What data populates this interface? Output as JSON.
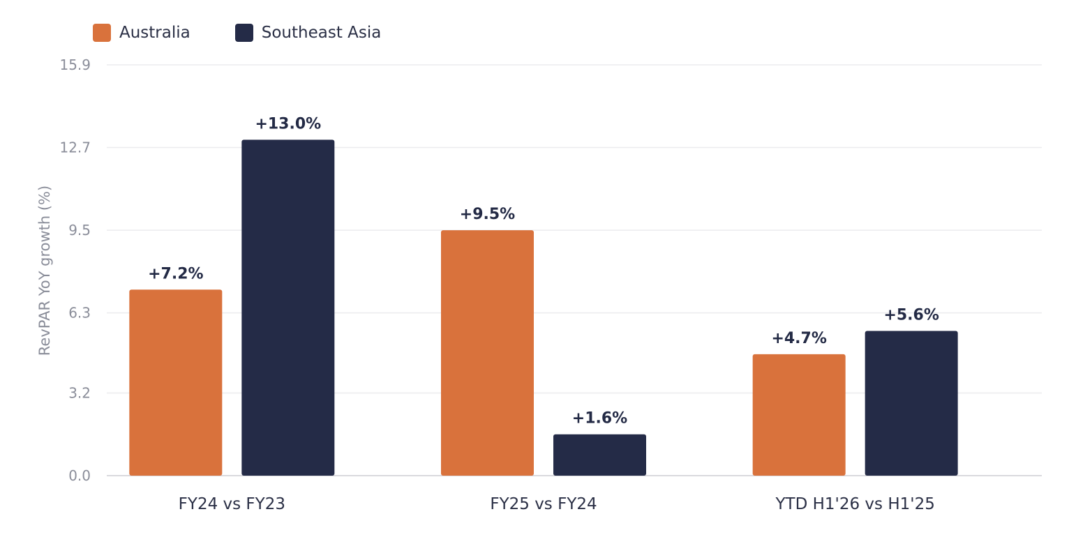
{
  "chart_data": {
    "type": "bar",
    "categories": [
      "FY24 vs FY23",
      "FY25 vs FY24",
      "YTD H1'26 vs H1'25"
    ],
    "series": [
      {
        "name": "Australia",
        "color": "#D9723C",
        "values": [
          7.2,
          9.5,
          4.7
        ],
        "labels": [
          "+7.2%",
          "+9.5%",
          "+4.7%"
        ]
      },
      {
        "name": "Southeast Asia",
        "color": "#242B47",
        "values": [
          13.0,
          1.6,
          5.6
        ],
        "labels": [
          "+13.0%",
          "+1.6%",
          "+5.6%"
        ]
      }
    ],
    "ylabel": "RevPAR YoY growth (%)",
    "xlabel": "",
    "ylim": [
      0,
      15.9
    ],
    "yticks": [
      "0.0",
      "3.2",
      "6.3",
      "9.5",
      "12.7",
      "15.9"
    ],
    "grid": true,
    "legend_position": "top-left"
  }
}
